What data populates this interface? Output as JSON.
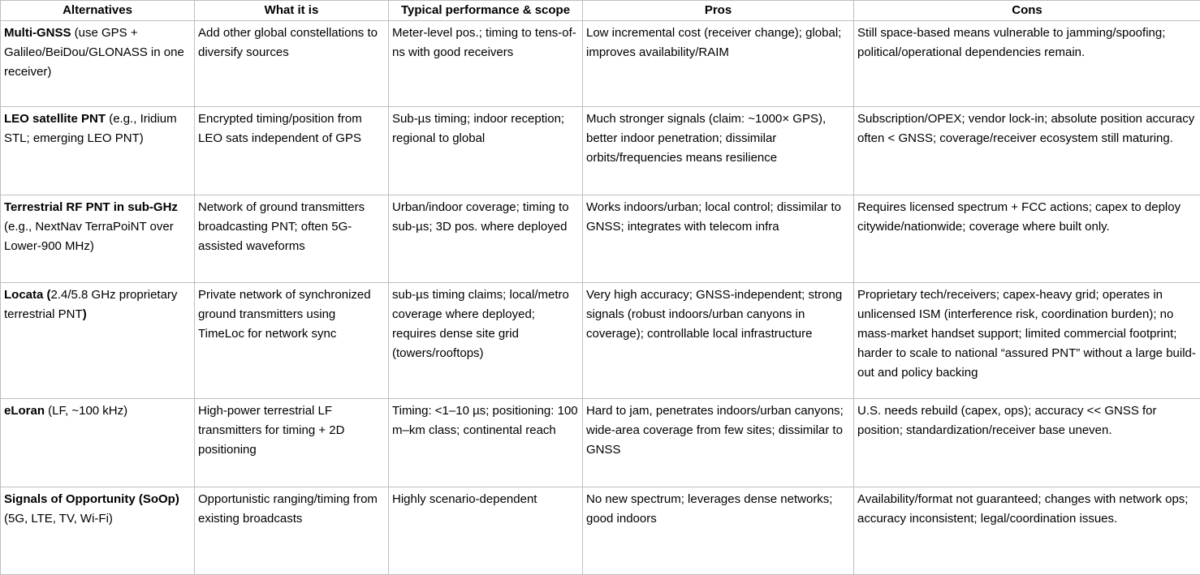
{
  "headers": [
    "Alternatives",
    "What it is",
    "Typical performance & scope",
    "Pros",
    "Cons"
  ],
  "rows": [
    {
      "name_bold": "Multi-GNSS",
      "name_rest": " (use GPS + Galileo/BeiDou/GLONASS in one receiver)",
      "what": "Add other global constellations to diversify sources",
      "performance": "Meter-level pos.; timing to tens-of-ns with good receivers",
      "pros": "Low incremental cost (receiver change); global; improves availability/RAIM",
      "cons": "Still space-based means vulnerable to jamming/spoofing; political/operational dependencies remain."
    },
    {
      "name_bold": "LEO satellite PNT",
      "name_rest": " (e.g., Iridium STL; emerging LEO PNT)",
      "what": "Encrypted timing/position from LEO sats independent of GPS",
      "performance": "Sub-µs timing; indoor reception; regional to global",
      "pros": "Much stronger signals (claim: ~1000× GPS), better indoor penetration; dissimilar orbits/frequencies means resilience",
      "cons": "Subscription/OPEX; vendor lock-in; absolute position accuracy often < GNSS; coverage/receiver ecosystem still maturing."
    },
    {
      "name_bold": "Terrestrial RF PNT in sub-GHz",
      "name_rest": " (e.g., NextNav TerraPoiNT over Lower-900 MHz)",
      "what": "Network of ground transmitters broadcasting PNT; often 5G-assisted waveforms",
      "performance": "Urban/indoor coverage; timing to sub-µs; 3D pos. where deployed",
      "pros": "Works indoors/urban; local control; dissimilar to GNSS; integrates with telecom infra",
      "cons": "Requires licensed spectrum + FCC actions; capex to deploy citywide/nationwide; coverage where built only."
    },
    {
      "name_bold": "Locata (",
      "name_rest": "2.4/5.8 GHz proprietary terrestrial PNT",
      "name_bold_end": ")",
      "what": "Private network of synchronized ground transmitters using TimeLoc for network sync",
      "performance": "sub-µs timing claims; local/metro coverage where deployed; requires dense site grid (towers/rooftops)",
      "pros": "Very high accuracy; GNSS-independent; strong signals (robust indoors/urban canyons in coverage); controllable local infrastructure",
      "cons": "Proprietary tech/receivers; capex-heavy grid; operates in unlicensed ISM (interference risk, coordination burden); no mass-market handset support; limited commercial footprint; harder to scale to national “assured PNT” without a large build-out and policy backing"
    },
    {
      "name_bold": "eLoran",
      "name_rest": " (LF, ~100 kHz)",
      "what": "High-power terrestrial LF transmitters for timing + 2D positioning",
      "performance": "Timing: <1–10 µs; positioning: 100 m–km class; continental reach",
      "pros": "Hard to jam, penetrates indoors/urban canyons; wide-area coverage from few sites; dissimilar to GNSS",
      "cons": "U.S. needs rebuild (capex, ops); accuracy << GNSS for position; standardization/receiver base uneven."
    },
    {
      "name_bold": "Signals of Opportunity (SoOp)",
      "name_rest": " (5G, LTE, TV, Wi-Fi)",
      "what": "Opportunistic ranging/timing from existing broadcasts",
      "performance": "Highly scenario-dependent",
      "pros": "No new spectrum; leverages dense networks; good indoors",
      "cons": "Availability/format not guaranteed; changes with network ops; accuracy inconsistent; legal/coordination issues."
    }
  ]
}
